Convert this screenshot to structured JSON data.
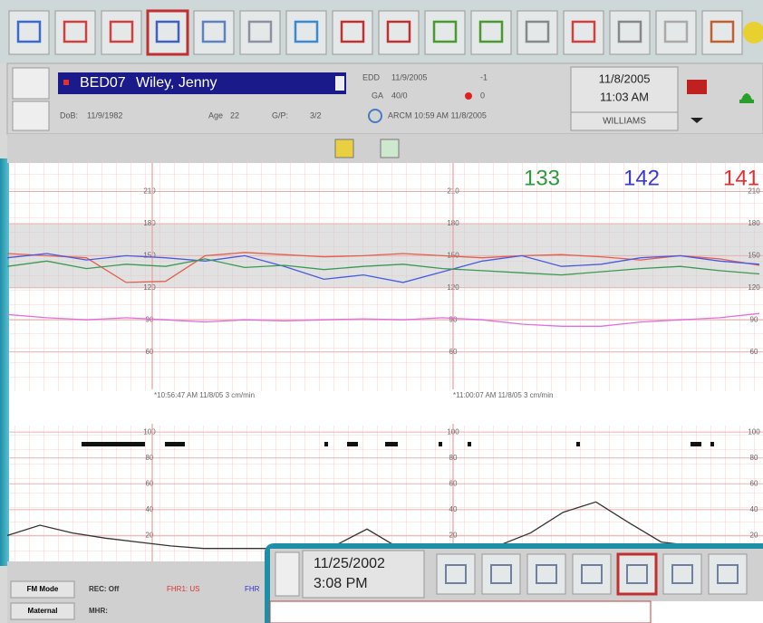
{
  "patient": {
    "bed": "BED07",
    "name": "Wiley, Jenny",
    "dob_label": "DoB:",
    "dob": "11/9/1982",
    "age_label": "Age",
    "age": "22",
    "gp_label": "G/P:",
    "gp": "3/2",
    "edd_label": "EDD",
    "edd": "11/9/2005",
    "ga_label": "GA",
    "ga": "40/0",
    "indicator1": "-1",
    "indicator2": "0",
    "arcm": "ARCM 10:59 AM 11/8/2005"
  },
  "clock": {
    "date": "11/8/2005",
    "time": "11:03 AM",
    "user": "WILLIAMS"
  },
  "readouts": [
    {
      "value": 133,
      "color": "#2e9a3c"
    },
    {
      "value": 142,
      "color": "#3a3ad0"
    },
    {
      "value": 141,
      "color": "#e03030"
    }
  ],
  "status": {
    "mode": "FM Mode",
    "rec": "REC: Off",
    "fhr1": "FHR1: US",
    "fhr2": "FHR",
    "maternal": "Maternal",
    "mhr": "MHR:"
  },
  "inset": {
    "date": "11/25/2002",
    "time": "3:08 PM"
  },
  "chart_data": [
    {
      "type": "line",
      "ylim": [
        25,
        235
      ],
      "yticks": [
        210,
        180,
        150,
        120,
        90,
        60
      ],
      "band": [
        120,
        180
      ],
      "annotations": [
        "*10:56:47 AM 11/8/05 3 cm/min",
        "*11:00:07 AM 11/8/05 3 cm/min"
      ],
      "series": [
        {
          "color": "#e06050",
          "values": [
            152,
            150,
            148,
            125,
            126,
            150,
            153,
            151,
            149,
            150,
            152,
            150,
            148,
            150,
            151,
            149,
            146,
            150,
            147,
            141
          ]
        },
        {
          "color": "#4a5ae0",
          "values": [
            148,
            152,
            146,
            150,
            148,
            145,
            150,
            140,
            128,
            132,
            125,
            135,
            145,
            150,
            140,
            142,
            148,
            150,
            145,
            142
          ]
        },
        {
          "color": "#3a9a50",
          "values": [
            140,
            145,
            138,
            142,
            140,
            147,
            139,
            141,
            137,
            140,
            142,
            138,
            136,
            134,
            132,
            135,
            138,
            140,
            136,
            133
          ]
        },
        {
          "color": "#e070e0",
          "values": [
            95,
            92,
            90,
            92,
            90,
            88,
            90,
            89,
            90,
            91,
            90,
            92,
            90,
            86,
            84,
            84,
            88,
            90,
            92,
            96
          ]
        }
      ]
    },
    {
      "type": "line",
      "ylim": [
        0,
        105
      ],
      "yticks": [
        100,
        80,
        60,
        40,
        20
      ],
      "series": [
        {
          "color": "#333333",
          "values": [
            20,
            28,
            22,
            18,
            15,
            12,
            10,
            10,
            10,
            10,
            12,
            25,
            10,
            10,
            10,
            12,
            22,
            38,
            46,
            30,
            15,
            12,
            10,
            12
          ]
        }
      ]
    }
  ]
}
